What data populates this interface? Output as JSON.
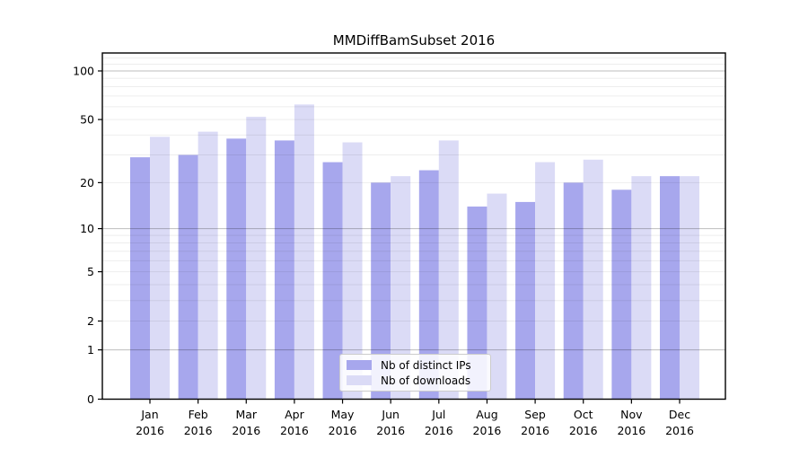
{
  "chart_data": {
    "type": "bar",
    "title": "MMDiffBamSubset 2016",
    "categories": [
      "Jan 2016",
      "Feb 2016",
      "Mar 2016",
      "Apr 2016",
      "May 2016",
      "Jun 2016",
      "Jul 2016",
      "Aug 2016",
      "Sep 2016",
      "Oct 2016",
      "Nov 2016",
      "Dec 2016"
    ],
    "series": [
      {
        "name": "Nb of distinct IPs",
        "color": "#a7a7ed",
        "values": [
          29,
          30,
          38,
          37,
          27,
          20,
          24,
          14,
          15,
          20,
          18,
          22
        ]
      },
      {
        "name": "Nb of downloads",
        "color": "#dbdbf6",
        "values": [
          39,
          42,
          52,
          62,
          36,
          22,
          37,
          17,
          27,
          28,
          22,
          22
        ]
      }
    ],
    "yscale": "log1p",
    "y_ticks": [
      0,
      1,
      2,
      5,
      10,
      20,
      50,
      100
    ],
    "minor_gridlines": [
      2,
      3,
      4,
      5,
      6,
      7,
      8,
      9,
      20,
      30,
      40,
      50,
      60,
      70,
      80,
      90,
      110,
      120
    ],
    "major_gridlines": [
      1,
      10,
      100
    ],
    "ylim": [
      0,
      129
    ],
    "grid": true,
    "legend_position": "lower center",
    "colors": {
      "spine": "#000000",
      "grid_major": "rgba(0,0,0,0.26)",
      "grid_minor": "rgba(0,0,0,0.07)",
      "background": "#ffffff"
    }
  }
}
